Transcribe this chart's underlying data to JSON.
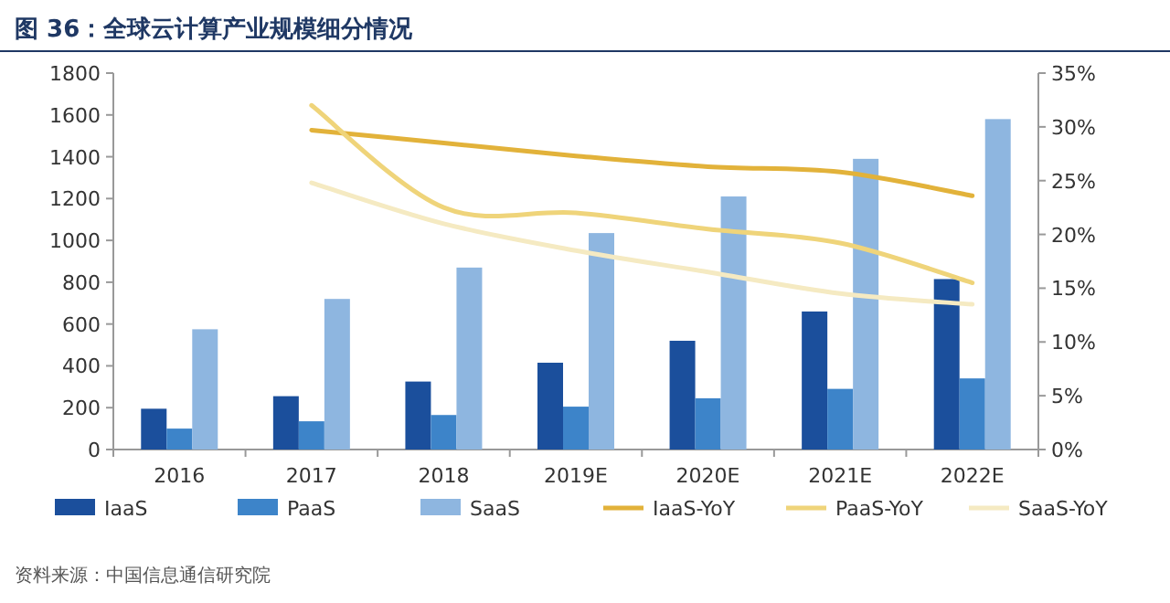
{
  "chart_data": {
    "type": "bar",
    "title": "图 36：全球云计算产业规模细分情况",
    "annotations": [
      "资料来源：中国信息通信研究院"
    ],
    "categories": [
      "2016",
      "2017",
      "2018",
      "2019E",
      "2020E",
      "2021E",
      "2022E"
    ],
    "series": [
      {
        "name": "IaaS",
        "color": "#1b4f9c",
        "values": [
          195,
          255,
          325,
          415,
          520,
          660,
          815
        ]
      },
      {
        "name": "PaaS",
        "color": "#3d84c9",
        "values": [
          100,
          135,
          165,
          205,
          245,
          290,
          340
        ]
      },
      {
        "name": "SaaS",
        "color": "#8eb6e0",
        "values": [
          575,
          720,
          870,
          1035,
          1210,
          1390,
          1580
        ]
      },
      {
        "name": "IaaS-YoY",
        "type": "line",
        "axis": "y2",
        "color": "#e2b23a",
        "values": [
          null,
          29.7,
          28.5,
          27.3,
          26.3,
          25.8,
          23.6
        ]
      },
      {
        "name": "PaaS-YoY",
        "type": "line",
        "axis": "y2",
        "color": "#efd47a",
        "values": [
          null,
          32,
          22.5,
          22,
          20.5,
          19.2,
          15.5
        ]
      },
      {
        "name": "SaaS-YoY",
        "type": "line",
        "axis": "y2",
        "color": "#f5eac2",
        "values": [
          null,
          24.8,
          21,
          18.5,
          16.5,
          14.5,
          13.5
        ]
      }
    ],
    "ylim": [
      0,
      1800
    ],
    "yticks": [
      0,
      200,
      400,
      600,
      800,
      1000,
      1200,
      1400,
      1600,
      1800
    ],
    "y2lim": [
      0,
      35
    ],
    "y2ticks": [
      {
        "value": 0,
        "label": "0%"
      },
      {
        "value": 5,
        "label": "5%"
      },
      {
        "value": 10,
        "label": "10%"
      },
      {
        "value": 15,
        "label": "15%"
      },
      {
        "value": 20,
        "label": "20%"
      },
      {
        "value": 25,
        "label": "25%"
      },
      {
        "value": 30,
        "label": "30%"
      },
      {
        "value": 35,
        "label": "35%"
      }
    ],
    "legend": "bottom"
  }
}
